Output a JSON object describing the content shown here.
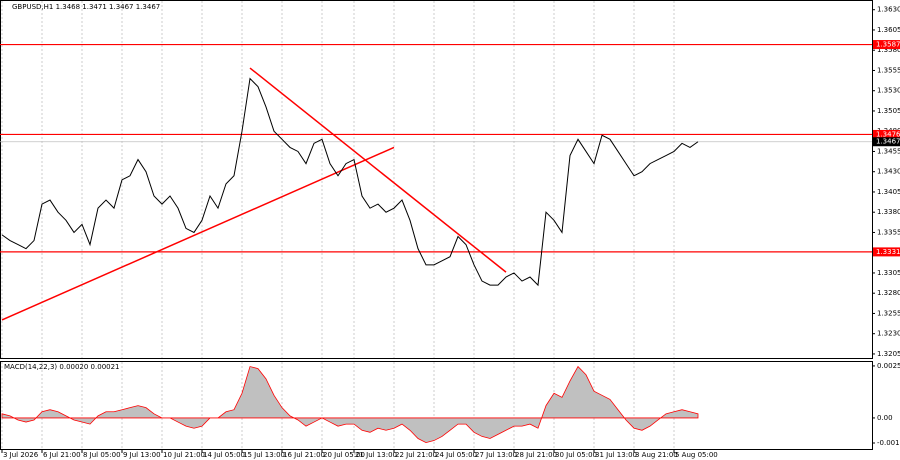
{
  "chart_data": [
    {
      "type": "line",
      "title": "GBPUSD,H1  1.3468 1.3471 1.3467 1.3467",
      "color": "#000000",
      "categories": [
        "3 Jul 2026",
        null,
        null,
        null,
        null,
        "6 Jul 21:00",
        null,
        null,
        null,
        null,
        "8 Jul 05:00",
        null,
        null,
        null,
        null,
        "9 Jul 13:00",
        null,
        null,
        null,
        null,
        "10 Jul 21:00",
        null,
        null,
        null,
        null,
        "14 Jul 05:00",
        null,
        null,
        null,
        null,
        "15 Jul 13:00",
        null,
        null,
        null,
        null,
        "16 Jul 21:00",
        null,
        null,
        null,
        null,
        "20 Jul 05:00",
        null,
        null,
        null,
        "21 Jul 13:00",
        null,
        null,
        null,
        null,
        "22 Jul 21:00",
        null,
        null,
        null,
        null,
        "24 Jul 05:00",
        null,
        null,
        null,
        null,
        "27 Jul 13:00",
        null,
        null,
        null,
        null,
        "28 Jul 21:00",
        null,
        null,
        null,
        null,
        "30 Jul 05:00",
        null,
        null,
        null,
        null,
        "31 Jul 13:00",
        null,
        null,
        null,
        null,
        "3 Aug 21:00",
        null,
        null,
        null,
        null,
        "5 Aug 05:00",
        null,
        null,
        null
      ],
      "values": [
        1.3352,
        1.3345,
        1.334,
        1.3335,
        1.3345,
        1.339,
        1.3395,
        1.338,
        1.337,
        1.3355,
        1.3365,
        1.334,
        1.3385,
        1.3395,
        1.3385,
        1.342,
        1.3425,
        1.3445,
        1.343,
        1.34,
        1.339,
        1.34,
        1.3385,
        1.336,
        1.3355,
        1.337,
        1.34,
        1.3385,
        1.3415,
        1.3425,
        1.348,
        1.3545,
        1.3535,
        1.351,
        1.348,
        1.347,
        1.346,
        1.3455,
        1.344,
        1.3465,
        1.347,
        1.344,
        1.3425,
        1.344,
        1.3445,
        1.34,
        1.3385,
        1.339,
        1.338,
        1.3385,
        1.3395,
        1.337,
        1.3335,
        1.3315,
        1.3315,
        1.332,
        1.3325,
        1.335,
        1.334,
        1.3315,
        1.3295,
        1.329,
        1.329,
        1.33,
        1.3305,
        1.3295,
        1.33,
        1.329,
        1.338,
        1.337,
        1.3355,
        1.345,
        1.347,
        1.3455,
        1.344,
        1.3475,
        1.347,
        1.3455,
        1.344,
        1.3425,
        1.343,
        1.344,
        1.3445,
        1.345,
        1.3455,
        1.3465,
        1.346,
        1.3467
      ],
      "ylim": [
        1.32,
        1.3642
      ],
      "yticks": [
        {
          "value": 1.363,
          "label": "1.3630"
        },
        1.3605,
        {
          "value": 1.358,
          "label": "1.3580"
        },
        1.3555,
        {
          "value": 1.353,
          "label": "1.3530"
        },
        1.3505,
        {
          "value": 1.348,
          "label": "1.3480"
        },
        1.3455,
        {
          "value": 1.343,
          "label": "1.3430"
        },
        1.3405,
        {
          "value": 1.338,
          "label": "1.3380"
        },
        1.3355,
        {
          "value": 1.333,
          "label": "1.3330"
        },
        1.3305,
        {
          "value": 1.328,
          "label": "1.3280"
        },
        1.3255,
        {
          "value": 1.323,
          "label": "1.3230"
        },
        1.3205
      ],
      "levels": [
        {
          "value": 1.3587,
          "color": "#ff0000"
        },
        {
          "value": 1.3476,
          "color": "#ff0000"
        },
        {
          "value": 1.3331,
          "color": "#ff0000"
        }
      ],
      "last": 1.3467,
      "trendlines": [
        {
          "points": [
            [
              0,
              1.3247
            ],
            [
              49,
              1.346
            ]
          ],
          "color": "#ff0000"
        },
        {
          "points": [
            [
              31,
              1.3558
            ],
            [
              63,
              1.3306
            ]
          ],
          "color": "#ff0000"
        }
      ],
      "grid": true
    },
    {
      "type": "area",
      "title": "MACD(14,22,3) 0.00020 0.00021",
      "color": "#c0c0c0",
      "line_color": "#ff0000",
      "values": [
        0.0002,
        0.0001,
        -0.0001,
        -0.0002,
        -0.0001,
        0.0003,
        0.0004,
        0.0003,
        0.0001,
        -0.0001,
        -0.0002,
        -0.0003,
        0.0001,
        0.0003,
        0.0003,
        0.0004,
        0.0005,
        0.0006,
        0.0005,
        0.0002,
        0,
        0,
        -0.0002,
        -0.0004,
        -0.0005,
        -0.0004,
        0,
        0,
        0.0003,
        0.0004,
        0.0012,
        0.0025,
        0.0024,
        0.0019,
        0.0011,
        0.0005,
        0.0001,
        -0.0001,
        -0.0004,
        -0.0002,
        0,
        -0.0002,
        -0.0004,
        -0.0003,
        -0.0003,
        -0.0006,
        -0.0007,
        -0.0005,
        -0.0006,
        -0.0005,
        -0.0003,
        -0.0006,
        -0.001,
        -0.0012,
        -0.0011,
        -0.0009,
        -0.0006,
        -0.0003,
        -0.0003,
        -0.0007,
        -0.0009,
        -0.001,
        -0.0008,
        -0.0006,
        -0.0004,
        -0.0004,
        -0.0003,
        -0.0005,
        0.0006,
        0.0012,
        0.001,
        0.0018,
        0.0025,
        0.0021,
        0.0013,
        0.0011,
        0.0009,
        0.0004,
        -0.0001,
        -0.0005,
        -0.0006,
        -0.0004,
        -0.0001,
        0.0002,
        0.0003,
        0.0004,
        0.0003,
        0.0002
      ],
      "ylim": [
        -0.00156,
        0.00277
      ],
      "yticks": [
        0.00253,
        {
          "value": 0,
          "label": "0.00"
        },
        -0.00122
      ]
    }
  ]
}
